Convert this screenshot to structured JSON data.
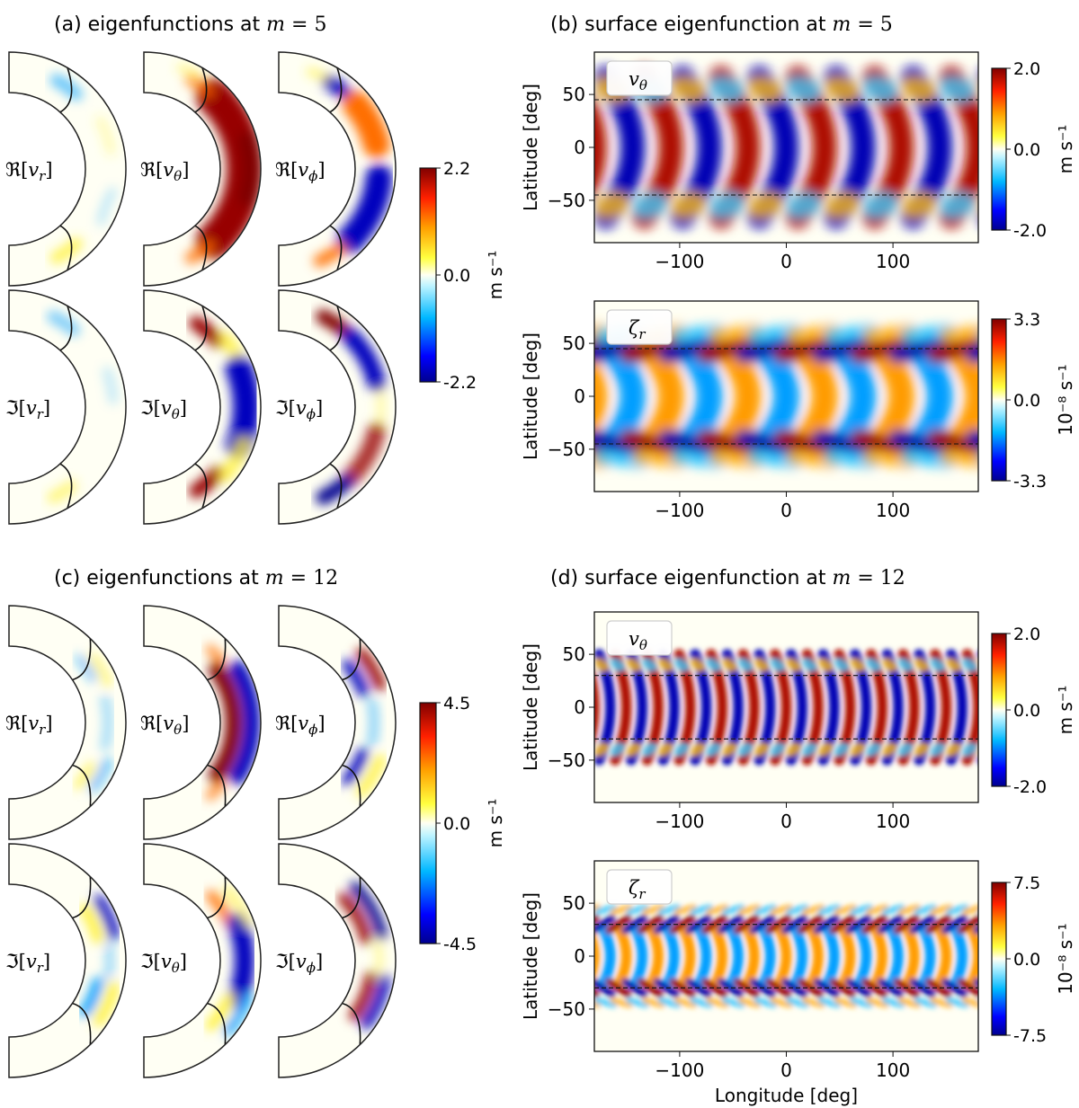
{
  "chart_data": {
    "type": "heatmap",
    "panels": [
      {
        "id": "a",
        "title_prefix": "(a) eigenfunctions at ",
        "title_var": "m",
        "title_eq": " = 5",
        "m": 5,
        "type": "heatmap",
        "component_labels": [
          "ℜ[v_r]",
          "ℜ[v_θ]",
          "ℜ[v_ϕ]",
          "ℑ[v_r]",
          "ℑ[v_θ]",
          "ℑ[v_ϕ]"
        ],
        "colorbar": {
          "max_label": "2.2",
          "mid_label": "0.0",
          "min_label": "-2.2",
          "unit": "m s⁻¹",
          "range": [
            -2.2,
            2.2
          ]
        }
      },
      {
        "id": "b",
        "title_prefix": "(b) surface eigenfunction at ",
        "title_var": "m",
        "title_eq": " = 5",
        "m": 5,
        "type": "heatmap",
        "xlabel": "",
        "ylabel": "Latitude [deg]",
        "xlim": [
          -180,
          180
        ],
        "ylim": [
          -90,
          90
        ],
        "x_ticks": [
          "−100",
          "0",
          "100"
        ],
        "y_ticks": [
          "50",
          "0",
          "−50"
        ],
        "critical_latitude": 45,
        "maps": [
          {
            "label": "vθ",
            "colorbar": {
              "max_label": "2.0",
              "mid_label": "0.0",
              "min_label": "-2.0",
              "unit": "m s⁻¹",
              "range": [
                -2.0,
                2.0
              ]
            }
          },
          {
            "label": "ζr",
            "colorbar": {
              "max_label": "3.3",
              "mid_label": "0.0",
              "min_label": "-3.3",
              "unit": "10⁻⁸ s⁻¹",
              "range": [
                -3.3,
                3.3
              ]
            }
          }
        ]
      },
      {
        "id": "c",
        "title_prefix": "(c) eigenfunctions at ",
        "title_var": "m",
        "title_eq": " = 12",
        "m": 12,
        "type": "heatmap",
        "component_labels": [
          "ℜ[v_r]",
          "ℜ[v_θ]",
          "ℜ[v_ϕ]",
          "ℑ[v_r]",
          "ℑ[v_θ]",
          "ℑ[v_ϕ]"
        ],
        "colorbar": {
          "max_label": "4.5",
          "mid_label": "0.0",
          "min_label": "-4.5",
          "unit": "m s⁻¹",
          "range": [
            -4.5,
            4.5
          ]
        }
      },
      {
        "id": "d",
        "title_prefix": "(d) surface eigenfunction at ",
        "title_var": "m",
        "title_eq": " = 12",
        "m": 12,
        "type": "heatmap",
        "xlabel": "Longitude [deg]",
        "ylabel": "Latitude [deg]",
        "xlim": [
          -180,
          180
        ],
        "ylim": [
          -90,
          90
        ],
        "x_ticks": [
          "−100",
          "0",
          "100"
        ],
        "y_ticks": [
          "50",
          "0",
          "−50"
        ],
        "critical_latitude": 30,
        "maps": [
          {
            "label": "vθ",
            "colorbar": {
              "max_label": "2.0",
              "mid_label": "0.0",
              "min_label": "-2.0",
              "unit": "m s⁻¹",
              "range": [
                -2.0,
                2.0
              ]
            }
          },
          {
            "label": "ζr",
            "colorbar": {
              "max_label": "7.5",
              "mid_label": "0.0",
              "min_label": "-7.5",
              "unit": "10⁻⁸ s⁻¹",
              "range": [
                -7.5,
                7.5
              ]
            }
          }
        ]
      }
    ]
  }
}
